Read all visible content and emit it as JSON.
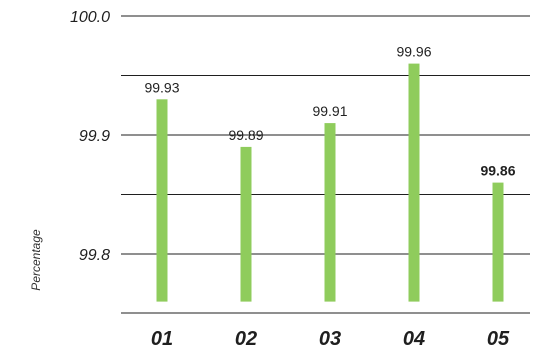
{
  "chart_data": {
    "type": "bar",
    "categories": [
      "01",
      "02",
      "03",
      "04",
      "05"
    ],
    "values": [
      99.93,
      99.89,
      99.91,
      99.96,
      99.86
    ],
    "value_labels": [
      "99.93",
      "99.89",
      "99.91",
      "99.96",
      "99.86"
    ],
    "bold_value_label_index": 4,
    "title": "",
    "xlabel": "",
    "ylabel": "Percentage",
    "y_ticks": [
      {
        "value": 100.0,
        "label": "100.0"
      },
      {
        "value": 99.9,
        "label": "99.9"
      },
      {
        "value": 99.8,
        "label": "99.8"
      }
    ],
    "y_gridlines": [
      100.0,
      99.95,
      99.9,
      99.85,
      99.8
    ],
    "ylim": [
      99.76,
      100.0
    ],
    "grid": true,
    "bar_color": "#8fcc5c",
    "line_color": "#1f1f1f"
  }
}
